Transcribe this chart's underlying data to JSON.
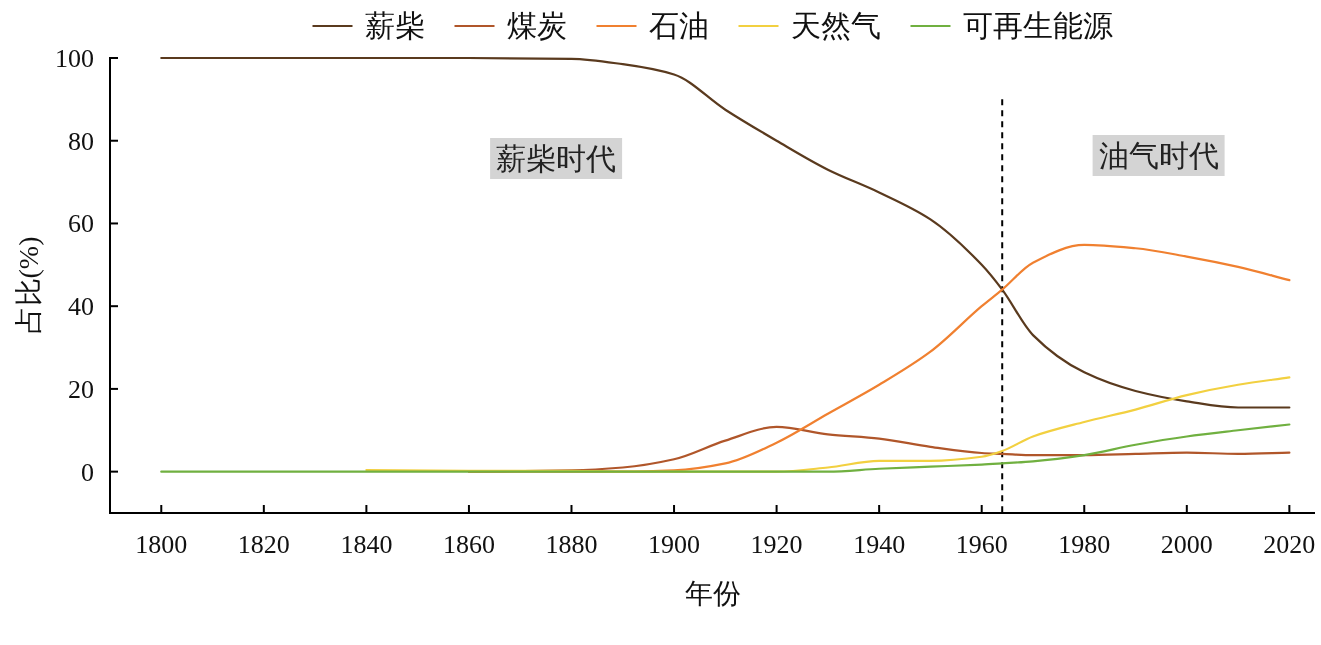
{
  "chart_data": {
    "type": "line",
    "xlabel": "年份",
    "ylabel": "占比(%)",
    "x": [
      1800,
      1820,
      1840,
      1860,
      1880,
      1890,
      1900,
      1910,
      1920,
      1930,
      1940,
      1950,
      1960,
      1964,
      1970,
      1980,
      1990,
      2000,
      2010,
      2020
    ],
    "series": [
      {
        "name": "薪柴",
        "color": "#5a3a1e",
        "values": [
          100,
          100,
          100,
          100,
          99.8,
          98.5,
          96,
          87.5,
          80,
          73,
          67.5,
          61,
          50,
          44,
          33,
          24,
          19.5,
          17,
          15.5,
          15.5
        ]
      },
      {
        "name": "煤炭",
        "color": "#b0562a",
        "values": [
          null,
          null,
          null,
          0,
          0.3,
          1,
          3,
          7.5,
          10.8,
          9,
          8,
          6,
          4.5,
          4.3,
          4,
          4,
          4.3,
          4.6,
          4.3,
          4.6
        ]
      },
      {
        "name": "石油",
        "color": "#f08030",
        "values": [
          null,
          null,
          null,
          0,
          0,
          0,
          0.3,
          2,
          7,
          14,
          21,
          29,
          40,
          44,
          50.5,
          54.8,
          54,
          52,
          49.5,
          46.3
        ]
      },
      {
        "name": "天然气",
        "color": "#f2d040",
        "values": [
          null,
          null,
          0.4,
          0.2,
          0.2,
          0,
          0,
          0,
          0,
          1,
          2.6,
          2.6,
          3.6,
          5,
          8.5,
          12,
          15,
          18.5,
          21,
          22.8
        ]
      },
      {
        "name": "可再生能源",
        "color": "#70b040",
        "values": [
          0,
          0,
          0,
          0,
          0,
          0,
          0,
          0,
          0,
          0,
          0.7,
          1.2,
          1.7,
          2,
          2.5,
          4,
          6.5,
          8.5,
          10,
          11.4
        ]
      }
    ],
    "xlim": [
      1790,
      2025
    ],
    "xticks": [
      1800,
      1820,
      1840,
      1860,
      1880,
      1900,
      1920,
      1940,
      1960,
      1980,
      2000,
      2020
    ],
    "ylim": [
      -10,
      100
    ],
    "yticks": [
      0,
      20,
      40,
      60,
      80,
      100
    ],
    "ref_lines": [
      {
        "axis": "x",
        "value": 1964,
        "line_style": "dashed",
        "color": "#000000"
      }
    ],
    "annotations": [
      "薪柴时代",
      "油气时代"
    ],
    "legend": "top",
    "grid": false,
    "marker": "none",
    "line_style": "solid"
  }
}
